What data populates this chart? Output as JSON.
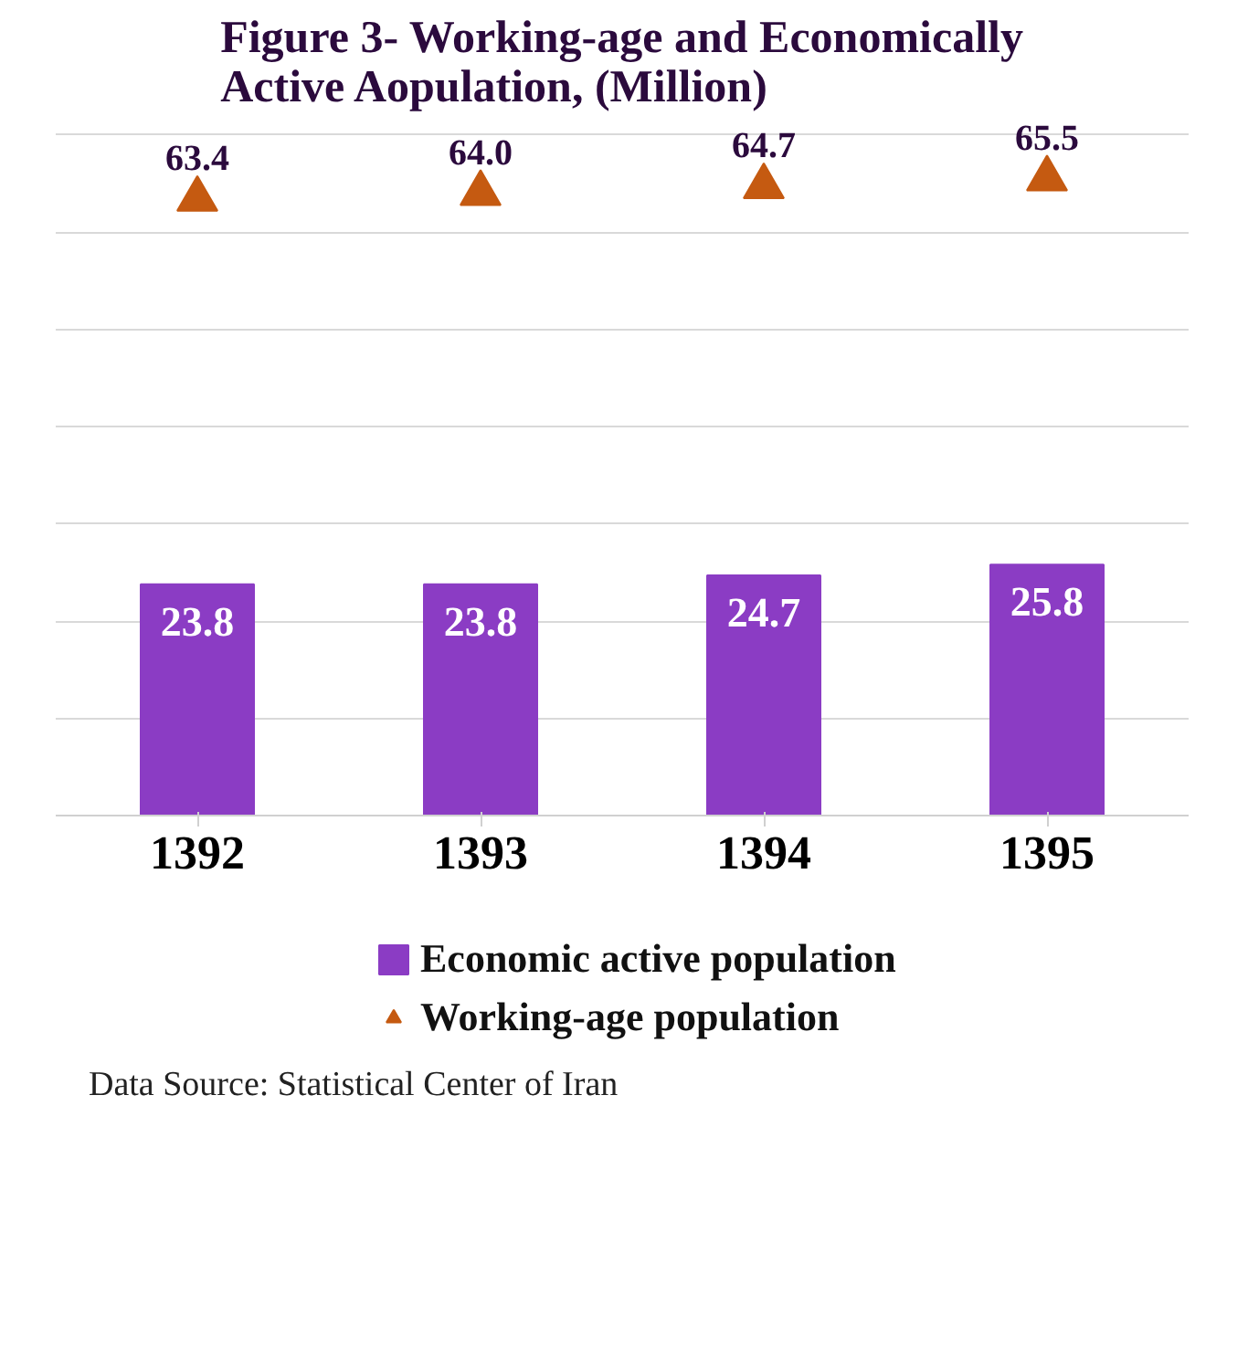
{
  "chart_data": {
    "type": "bar",
    "title": "Figure 3- Working-age and Economically Active Aopulation, (Million)",
    "categories": [
      "1392",
      "1393",
      "1394",
      "1395"
    ],
    "series": [
      {
        "name": "Economic active population",
        "color": "#8b3cc4",
        "values": [
          23.8,
          23.8,
          24.7,
          25.8
        ]
      },
      {
        "name": "Working-age population",
        "type": "scatter",
        "marker": "triangle",
        "color": "#c55a11",
        "values": [
          63.4,
          64.0,
          64.7,
          65.5
        ],
        "value_labels": [
          "63.4",
          "64.0",
          "64.7",
          "65.5"
        ]
      }
    ],
    "tick_labels": "x",
    "grid": "y",
    "legend": "bottom",
    "data_labels": true,
    "annotations": [
      "Data Source: Statistical Center of Iran"
    ]
  }
}
